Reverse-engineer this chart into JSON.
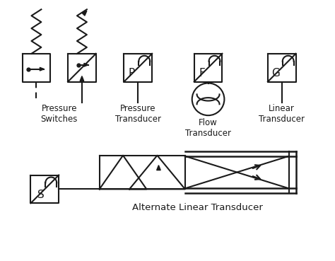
{
  "bg_color": "#ffffff",
  "line_color": "#1a1a1a",
  "label_ps": "Pressure\nSwitches",
  "label_pt": "Pressure\nTransducer",
  "label_ft": "Flow\nTransducer",
  "label_lt": "Linear\nTransducer",
  "label_alt": "Alternate Linear Transducer",
  "lw": 1.5
}
